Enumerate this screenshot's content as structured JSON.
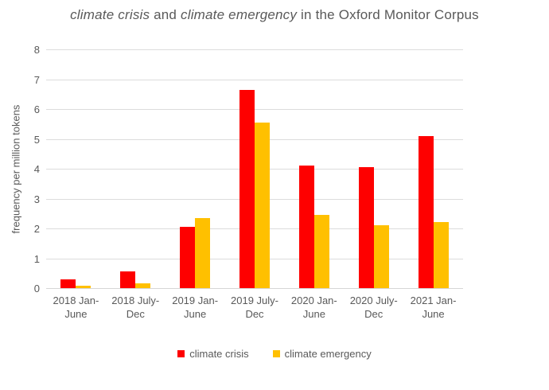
{
  "title_parts": [
    {
      "text": "climate crisis",
      "italic": true
    },
    {
      "text": " and ",
      "italic": false
    },
    {
      "text": "climate emergency",
      "italic": true
    },
    {
      "text": " in the Oxford Monitor Corpus",
      "italic": false
    }
  ],
  "chart_data": {
    "type": "bar",
    "title": "climate crisis and climate emergency in the Oxford Monitor Corpus",
    "xlabel": "",
    "ylabel": "frequency per million tokens",
    "ylim": [
      0,
      8
    ],
    "yticks": [
      0,
      1,
      2,
      3,
      4,
      5,
      6,
      7,
      8
    ],
    "grid": true,
    "legend_position": "bottom",
    "categories": [
      "2018 Jan-June",
      "2018 July-Dec",
      "2019 Jan-June",
      "2019 July-Dec",
      "2020 Jan-June",
      "2020 July-Dec",
      "2021 Jan-June"
    ],
    "categories_lines": [
      [
        "2018 Jan-",
        "June"
      ],
      [
        "2018 July-",
        "Dec"
      ],
      [
        "2019 Jan-",
        "June"
      ],
      [
        "2019 July-",
        "Dec"
      ],
      [
        "2020 Jan-",
        "June"
      ],
      [
        "2020 July-",
        "Dec"
      ],
      [
        "2021 Jan-",
        "June"
      ]
    ],
    "series": [
      {
        "name": "climate crisis",
        "color": "#fe0000",
        "values": [
          0.28,
          0.55,
          2.05,
          6.65,
          4.1,
          4.05,
          5.1
        ]
      },
      {
        "name": "climate emergency",
        "color": "#ffc000",
        "values": [
          0.07,
          0.15,
          2.35,
          5.55,
          2.45,
          2.1,
          2.2
        ]
      }
    ]
  },
  "colors": {
    "crisis_red": "#fe0000",
    "emergency_gold": "#ffc000",
    "text_gray": "#595959",
    "gridline_gray": "#dcdcdc"
  }
}
